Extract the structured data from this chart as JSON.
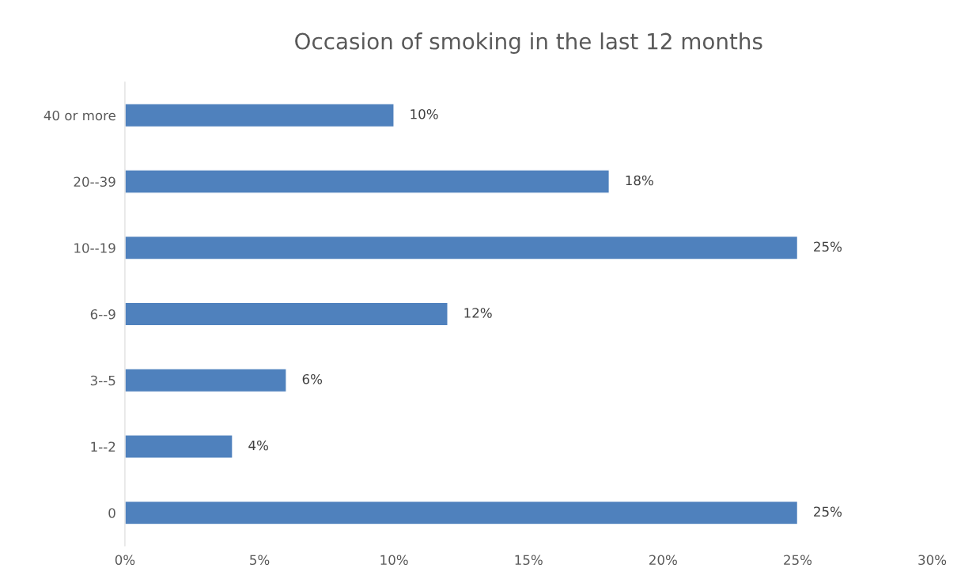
{
  "chart_data": {
    "type": "bar",
    "orientation": "horizontal",
    "title": "Occasion of smoking in the last 12 months",
    "categories": [
      "40 or more",
      "20--39",
      "10--19",
      "6--9",
      "3--5",
      "1--2",
      "0"
    ],
    "values": [
      10,
      18,
      25,
      12,
      6,
      4,
      25
    ],
    "value_labels": [
      "10%",
      "18%",
      "25%",
      "12%",
      "6%",
      "4%",
      "25%"
    ],
    "color": "#4f81bd",
    "xlim": [
      0,
      30
    ],
    "xticks": [
      {
        "value": 0,
        "label": "0%"
      },
      {
        "value": 5,
        "label": "5%"
      },
      {
        "value": 10,
        "label": "10%"
      },
      {
        "value": 15,
        "label": "15%"
      },
      {
        "value": 20,
        "label": "20%"
      },
      {
        "value": 25,
        "label": "25%"
      },
      {
        "value": 30,
        "label": "30%"
      }
    ],
    "grid": false,
    "legend": false
  }
}
